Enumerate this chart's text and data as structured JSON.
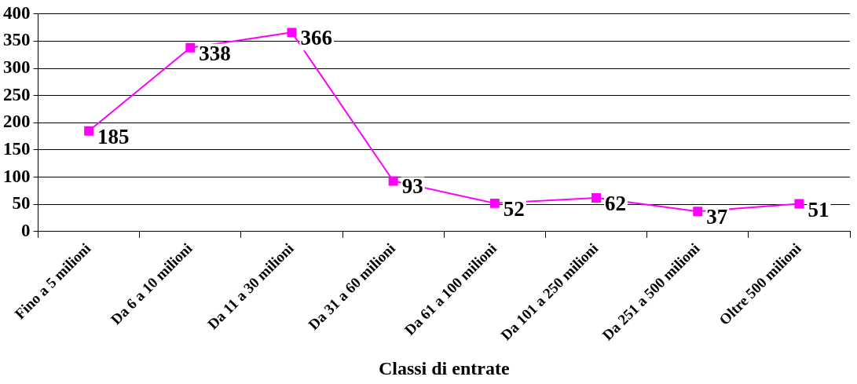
{
  "chart_data": {
    "type": "line",
    "xlabel": "Classi di entrate",
    "categories": [
      "Fino a 5 milioni",
      "Da 6 a 10 milioni",
      "Da 11 a 30 milioni",
      "Da 31 a 60 milioni",
      "Da 61 a 100 milioni",
      "Da 101 a 250 milioni",
      "Da 251 a 500 milioni",
      "Oltre 500 milioni"
    ],
    "values": [
      185,
      338,
      366,
      93,
      52,
      62,
      37,
      51
    ],
    "color": "#ff00ff",
    "ylim": [
      0,
      400
    ],
    "yticks": [
      0,
      50,
      100,
      150,
      200,
      250,
      300,
      350,
      400
    ],
    "grid": "y",
    "legend": false,
    "marker": "square",
    "line_style": "solid",
    "data_labels": true
  }
}
